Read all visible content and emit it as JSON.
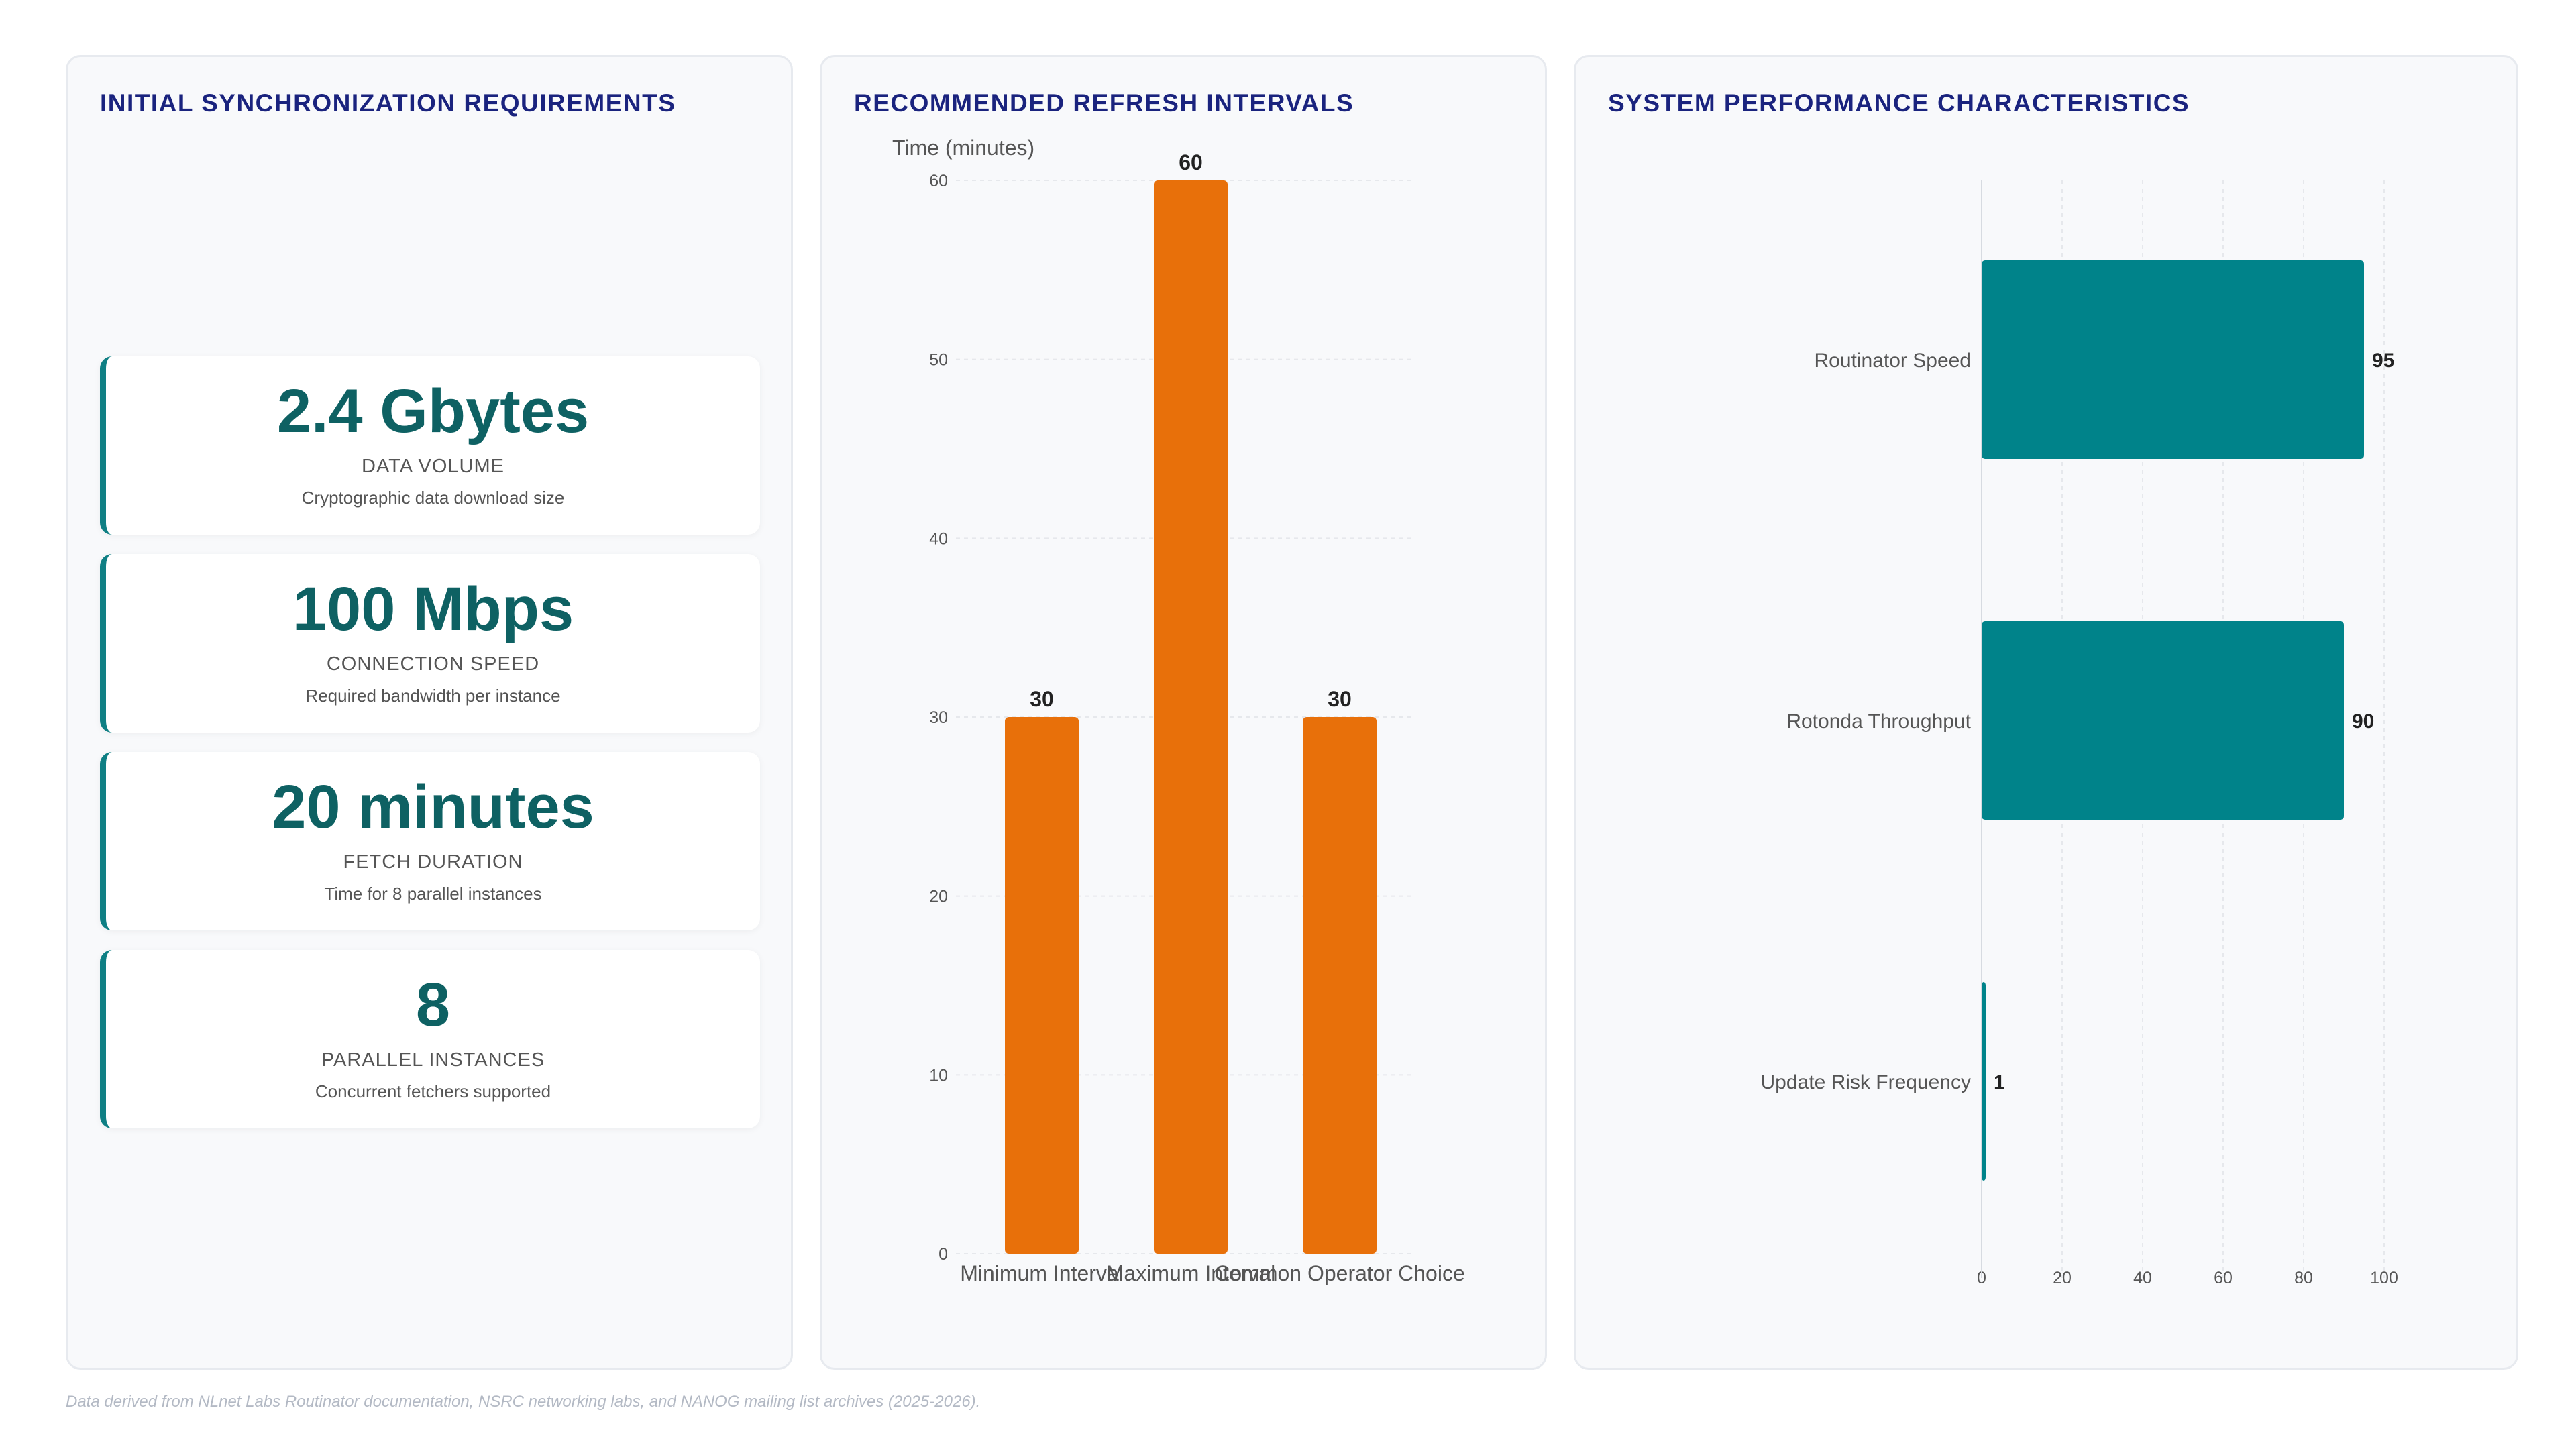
{
  "panels": {
    "left_title": "INITIAL SYNCHRONIZATION REQUIREMENTS",
    "mid_title": "RECOMMENDED REFRESH INTERVALS",
    "right_title": "SYSTEM PERFORMANCE CHARACTERISTICS"
  },
  "metrics": [
    {
      "value": "2.4 Gbytes",
      "label": "DATA VOLUME",
      "desc": "Cryptographic data download size"
    },
    {
      "value": "100 Mbps",
      "label": "CONNECTION SPEED",
      "desc": "Required bandwidth per instance"
    },
    {
      "value": "20 minutes",
      "label": "FETCH DURATION",
      "desc": "Time for 8 parallel instances"
    },
    {
      "value": "8",
      "label": "PARALLEL INSTANCES",
      "desc": "Concurrent fetchers supported"
    }
  ],
  "footer": "Data derived from NLnet Labs Routinator documentation, NSRC networking labs, and NANOG mailing list archives (2025-2026).",
  "chart_data": [
    {
      "type": "bar",
      "orientation": "vertical",
      "categories": [
        "Minimum Interval",
        "Maximum Interval",
        "Common Operator Choice"
      ],
      "values": [
        30,
        60,
        30
      ],
      "ylabel": "Time (minutes)",
      "ylim": [
        0,
        60
      ],
      "yticks": [
        0,
        10,
        20,
        30,
        40,
        50,
        60
      ],
      "grid": true,
      "data_labels": true,
      "color": "#e8700a"
    },
    {
      "type": "bar",
      "orientation": "horizontal",
      "categories": [
        "Routinator Speed",
        "Rotonda Throughput",
        "Update Risk Frequency"
      ],
      "values": [
        95,
        90,
        1
      ],
      "xlim": [
        0,
        100
      ],
      "xticks": [
        0,
        20,
        40,
        60,
        80,
        100
      ],
      "grid": true,
      "data_labels": true,
      "color": "#00838a"
    }
  ]
}
